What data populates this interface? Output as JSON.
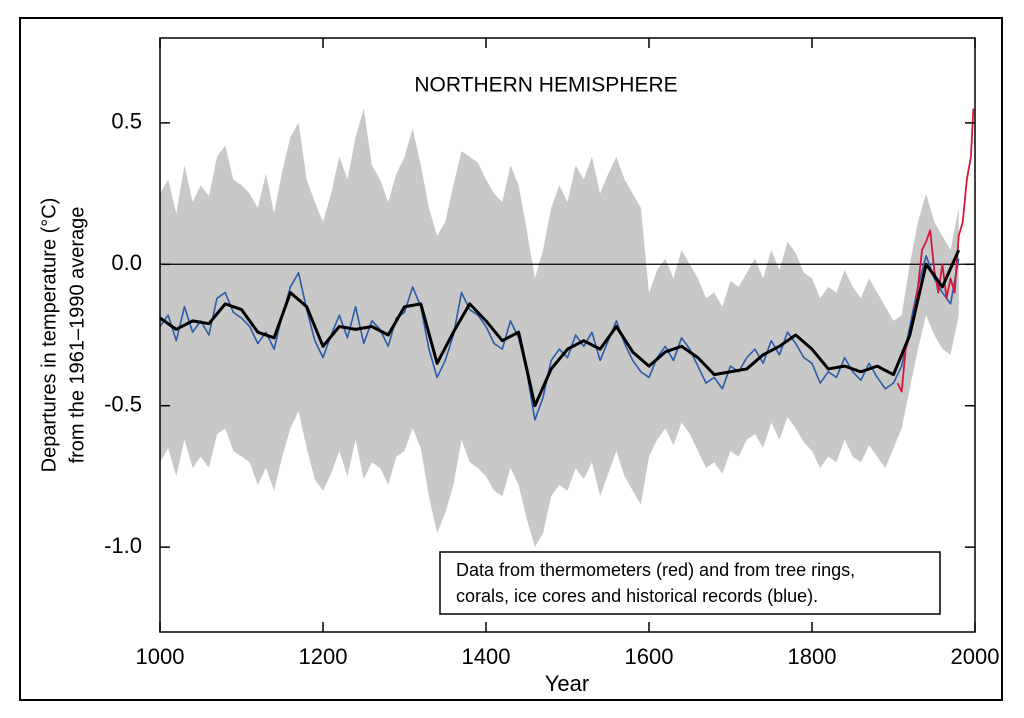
{
  "chart_data": {
    "type": "line",
    "title": "NORTHERN HEMISPHERE",
    "x_label": "Year",
    "y_label": [
      "Departures in temperature (°C)",
      "from the 1961–1990 average"
    ],
    "annotation": [
      "Data from thermometers (red) and from tree rings,",
      "corals, ice cores and historical records (blue)."
    ],
    "xlim": [
      1000,
      2000
    ],
    "xticks": [
      1000,
      1200,
      1400,
      1600,
      1800,
      2000
    ],
    "ylim": [
      -1.3,
      0.8
    ],
    "yticks": [
      {
        "value": -1,
        "label": "-1.0"
      },
      {
        "value": -0.5,
        "label": "-0.5"
      },
      {
        "value": 0,
        "label": "0.0"
      },
      0.5
    ],
    "reference_line": 0,
    "uncertainty": {
      "color": "#c8c8c8",
      "x": [
        1000,
        1010,
        1020,
        1030,
        1040,
        1050,
        1060,
        1070,
        1080,
        1090,
        1100,
        1110,
        1120,
        1130,
        1140,
        1150,
        1160,
        1170,
        1180,
        1190,
        1200,
        1210,
        1220,
        1230,
        1240,
        1250,
        1260,
        1270,
        1280,
        1290,
        1300,
        1310,
        1320,
        1330,
        1340,
        1350,
        1360,
        1370,
        1380,
        1390,
        1400,
        1410,
        1420,
        1430,
        1440,
        1450,
        1460,
        1470,
        1480,
        1490,
        1500,
        1510,
        1520,
        1530,
        1540,
        1550,
        1560,
        1570,
        1580,
        1590,
        1600,
        1610,
        1620,
        1630,
        1640,
        1650,
        1660,
        1670,
        1680,
        1690,
        1700,
        1710,
        1720,
        1730,
        1740,
        1750,
        1760,
        1770,
        1780,
        1790,
        1800,
        1810,
        1820,
        1830,
        1840,
        1850,
        1860,
        1870,
        1880,
        1890,
        1900,
        1910,
        1920,
        1930,
        1940,
        1950,
        1960,
        1970,
        1980
      ],
      "upper": [
        0.25,
        0.3,
        0.18,
        0.35,
        0.22,
        0.28,
        0.24,
        0.38,
        0.42,
        0.3,
        0.28,
        0.25,
        0.2,
        0.32,
        0.18,
        0.33,
        0.45,
        0.5,
        0.3,
        0.22,
        0.15,
        0.25,
        0.38,
        0.3,
        0.45,
        0.55,
        0.35,
        0.3,
        0.22,
        0.32,
        0.38,
        0.48,
        0.35,
        0.2,
        0.1,
        0.15,
        0.28,
        0.4,
        0.38,
        0.36,
        0.3,
        0.25,
        0.22,
        0.35,
        0.28,
        0.12,
        -0.05,
        0.05,
        0.2,
        0.28,
        0.22,
        0.35,
        0.3,
        0.38,
        0.25,
        0.32,
        0.38,
        0.3,
        0.25,
        0.2,
        -0.1,
        -0.02,
        0.02,
        -0.05,
        0.05,
        0.0,
        -0.05,
        -0.12,
        -0.1,
        -0.15,
        -0.06,
        -0.08,
        -0.03,
        0.02,
        -0.05,
        0.05,
        -0.02,
        0.08,
        0.04,
        -0.03,
        -0.05,
        -0.12,
        -0.08,
        -0.1,
        -0.02,
        -0.08,
        -0.12,
        -0.05,
        -0.1,
        -0.15,
        -0.2,
        -0.18,
        0.0,
        0.15,
        0.25,
        0.15,
        0.1,
        0.05,
        0.2
      ],
      "lower": [
        -0.7,
        -0.65,
        -0.75,
        -0.62,
        -0.72,
        -0.68,
        -0.72,
        -0.6,
        -0.58,
        -0.66,
        -0.68,
        -0.7,
        -0.78,
        -0.72,
        -0.8,
        -0.68,
        -0.58,
        -0.52,
        -0.65,
        -0.76,
        -0.8,
        -0.74,
        -0.66,
        -0.75,
        -0.62,
        -0.76,
        -0.7,
        -0.72,
        -0.78,
        -0.68,
        -0.66,
        -0.58,
        -0.65,
        -0.82,
        -0.95,
        -0.88,
        -0.78,
        -0.62,
        -0.7,
        -0.72,
        -0.75,
        -0.8,
        -0.82,
        -0.72,
        -0.78,
        -0.9,
        -1.0,
        -0.95,
        -0.82,
        -0.78,
        -0.8,
        -0.72,
        -0.76,
        -0.7,
        -0.82,
        -0.74,
        -0.66,
        -0.75,
        -0.8,
        -0.85,
        -0.68,
        -0.62,
        -0.58,
        -0.64,
        -0.56,
        -0.6,
        -0.66,
        -0.72,
        -0.7,
        -0.74,
        -0.66,
        -0.68,
        -0.62,
        -0.6,
        -0.65,
        -0.56,
        -0.62,
        -0.54,
        -0.58,
        -0.63,
        -0.66,
        -0.72,
        -0.68,
        -0.7,
        -0.62,
        -0.68,
        -0.7,
        -0.64,
        -0.68,
        -0.72,
        -0.65,
        -0.58,
        -0.44,
        -0.3,
        -0.18,
        -0.25,
        -0.3,
        -0.32,
        -0.18
      ]
    },
    "series": [
      {
        "color": "#2a5caa",
        "width": 1.6,
        "x": [
          1000,
          1010,
          1020,
          1030,
          1040,
          1050,
          1060,
          1070,
          1080,
          1090,
          1100,
          1110,
          1120,
          1130,
          1140,
          1150,
          1160,
          1170,
          1180,
          1190,
          1200,
          1210,
          1220,
          1230,
          1240,
          1250,
          1260,
          1270,
          1280,
          1290,
          1300,
          1310,
          1320,
          1330,
          1340,
          1350,
          1360,
          1370,
          1380,
          1390,
          1400,
          1410,
          1420,
          1430,
          1440,
          1450,
          1460,
          1470,
          1480,
          1490,
          1500,
          1510,
          1520,
          1530,
          1540,
          1550,
          1560,
          1570,
          1580,
          1590,
          1600,
          1610,
          1620,
          1630,
          1640,
          1650,
          1660,
          1670,
          1680,
          1690,
          1700,
          1710,
          1720,
          1730,
          1740,
          1750,
          1760,
          1770,
          1780,
          1790,
          1800,
          1810,
          1820,
          1830,
          1840,
          1850,
          1860,
          1870,
          1880,
          1890,
          1900,
          1910,
          1920,
          1930,
          1940,
          1950,
          1960,
          1970,
          1980
        ],
        "values": [
          -0.22,
          -0.18,
          -0.27,
          -0.15,
          -0.24,
          -0.2,
          -0.25,
          -0.12,
          -0.1,
          -0.17,
          -0.19,
          -0.22,
          -0.28,
          -0.24,
          -0.3,
          -0.18,
          -0.08,
          -0.03,
          -0.16,
          -0.27,
          -0.33,
          -0.25,
          -0.18,
          -0.26,
          -0.15,
          -0.28,
          -0.2,
          -0.23,
          -0.29,
          -0.19,
          -0.17,
          -0.08,
          -0.15,
          -0.3,
          -0.4,
          -0.34,
          -0.25,
          -0.1,
          -0.16,
          -0.18,
          -0.22,
          -0.28,
          -0.3,
          -0.2,
          -0.26,
          -0.38,
          -0.55,
          -0.47,
          -0.34,
          -0.3,
          -0.33,
          -0.25,
          -0.29,
          -0.24,
          -0.34,
          -0.27,
          -0.2,
          -0.28,
          -0.34,
          -0.38,
          -0.4,
          -0.33,
          -0.29,
          -0.34,
          -0.26,
          -0.3,
          -0.36,
          -0.42,
          -0.4,
          -0.44,
          -0.36,
          -0.38,
          -0.33,
          -0.3,
          -0.35,
          -0.27,
          -0.32,
          -0.24,
          -0.28,
          -0.33,
          -0.35,
          -0.42,
          -0.38,
          -0.4,
          -0.33,
          -0.38,
          -0.41,
          -0.35,
          -0.4,
          -0.44,
          -0.42,
          -0.36,
          -0.22,
          -0.08,
          0.03,
          -0.05,
          -0.1,
          -0.14,
          0.02
        ]
      },
      {
        "color": "#d6163c",
        "width": 1.8,
        "x": [
          1905,
          1910,
          1915,
          1920,
          1925,
          1930,
          1935,
          1940,
          1945,
          1950,
          1955,
          1960,
          1965,
          1970,
          1975,
          1980,
          1985,
          1990,
          1995,
          1998
        ],
        "values": [
          -0.42,
          -0.45,
          -0.3,
          -0.25,
          -0.18,
          -0.08,
          0.05,
          0.08,
          0.12,
          -0.02,
          -0.1,
          0.0,
          -0.12,
          -0.05,
          -0.1,
          0.1,
          0.15,
          0.3,
          0.38,
          0.55
        ]
      },
      {
        "color": "#000000",
        "width": 3,
        "x": [
          1000,
          1020,
          1040,
          1060,
          1080,
          1100,
          1120,
          1140,
          1160,
          1180,
          1200,
          1220,
          1240,
          1260,
          1280,
          1300,
          1320,
          1340,
          1360,
          1380,
          1400,
          1420,
          1440,
          1460,
          1480,
          1500,
          1520,
          1540,
          1560,
          1580,
          1600,
          1620,
          1640,
          1660,
          1680,
          1700,
          1720,
          1740,
          1760,
          1780,
          1800,
          1820,
          1840,
          1860,
          1880,
          1900,
          1920,
          1940,
          1960,
          1980
        ],
        "values": [
          -0.19,
          -0.23,
          -0.2,
          -0.21,
          -0.14,
          -0.16,
          -0.24,
          -0.26,
          -0.1,
          -0.15,
          -0.29,
          -0.22,
          -0.23,
          -0.22,
          -0.25,
          -0.15,
          -0.14,
          -0.35,
          -0.24,
          -0.14,
          -0.2,
          -0.27,
          -0.24,
          -0.5,
          -0.37,
          -0.3,
          -0.27,
          -0.3,
          -0.22,
          -0.31,
          -0.36,
          -0.31,
          -0.29,
          -0.33,
          -0.39,
          -0.38,
          -0.37,
          -0.32,
          -0.29,
          -0.25,
          -0.3,
          -0.37,
          -0.36,
          -0.38,
          -0.36,
          -0.39,
          -0.25,
          0.0,
          -0.08,
          0.05
        ]
      }
    ]
  }
}
